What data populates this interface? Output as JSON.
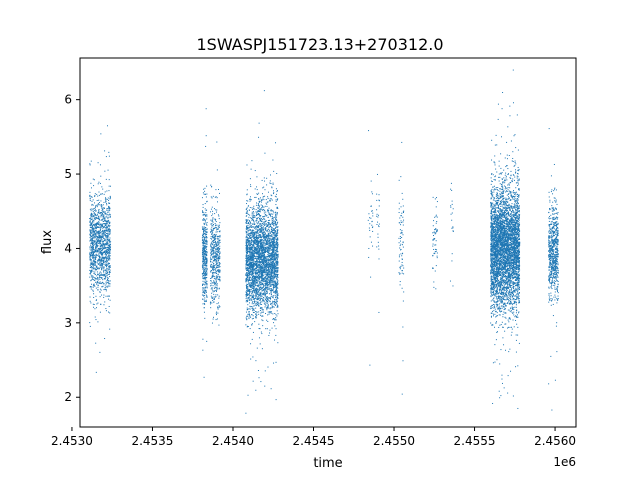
{
  "chart_data": {
    "type": "scatter",
    "title": "1SWASPJ151723.13+270312.0",
    "xlabel": "time",
    "ylabel": "flux",
    "x_offset_label": "1e6",
    "xlim": [
      2.45305,
      2.45613
    ],
    "ylim": [
      1.6,
      6.56
    ],
    "x_ticks": [
      2.453,
      2.4535,
      2.454,
      2.4545,
      2.455,
      2.4555,
      2.456
    ],
    "x_tick_labels": [
      "2.4530",
      "2.4535",
      "2.4540",
      "2.4545",
      "2.4550",
      "2.4555",
      "2.4560"
    ],
    "y_ticks": [
      2,
      3,
      4,
      5,
      6
    ],
    "y_tick_labels": [
      "2",
      "3",
      "4",
      "5",
      "6"
    ],
    "grid": false,
    "point_color": "#1f77b4",
    "clusters": [
      {
        "x_range": [
          2.45311,
          2.45324
        ],
        "y_center": 4.05,
        "y_spread": 0.33,
        "n": 1400
      },
      {
        "x_range": [
          2.45381,
          2.45384
        ],
        "y_center": 3.9,
        "y_spread": 0.33,
        "n": 450
      },
      {
        "x_range": [
          2.45386,
          2.45392
        ],
        "y_center": 3.9,
        "y_spread": 0.32,
        "n": 500
      },
      {
        "x_range": [
          2.45408,
          2.45428
        ],
        "y_center": 3.85,
        "y_spread": 0.35,
        "n": 3500
      },
      {
        "x_range": [
          2.45484,
          2.45487
        ],
        "y_center": 4.2,
        "y_spread": 0.25,
        "n": 30
      },
      {
        "x_range": [
          2.45489,
          2.45491
        ],
        "y_center": 4.3,
        "y_spread": 0.35,
        "n": 25
      },
      {
        "x_range": [
          2.45503,
          2.45506
        ],
        "y_center": 4.05,
        "y_spread": 0.35,
        "n": 80
      },
      {
        "x_range": [
          2.45524,
          2.45527
        ],
        "y_center": 4.1,
        "y_spread": 0.3,
        "n": 60
      },
      {
        "x_range": [
          2.45535,
          2.45537
        ],
        "y_center": 4.2,
        "y_spread": 0.3,
        "n": 20
      },
      {
        "x_range": [
          2.4556,
          2.45578
        ],
        "y_center": 4.0,
        "y_spread": 0.4,
        "n": 4500
      },
      {
        "x_range": [
          2.45596,
          2.45602
        ],
        "y_center": 3.95,
        "y_spread": 0.3,
        "n": 700
      }
    ]
  }
}
